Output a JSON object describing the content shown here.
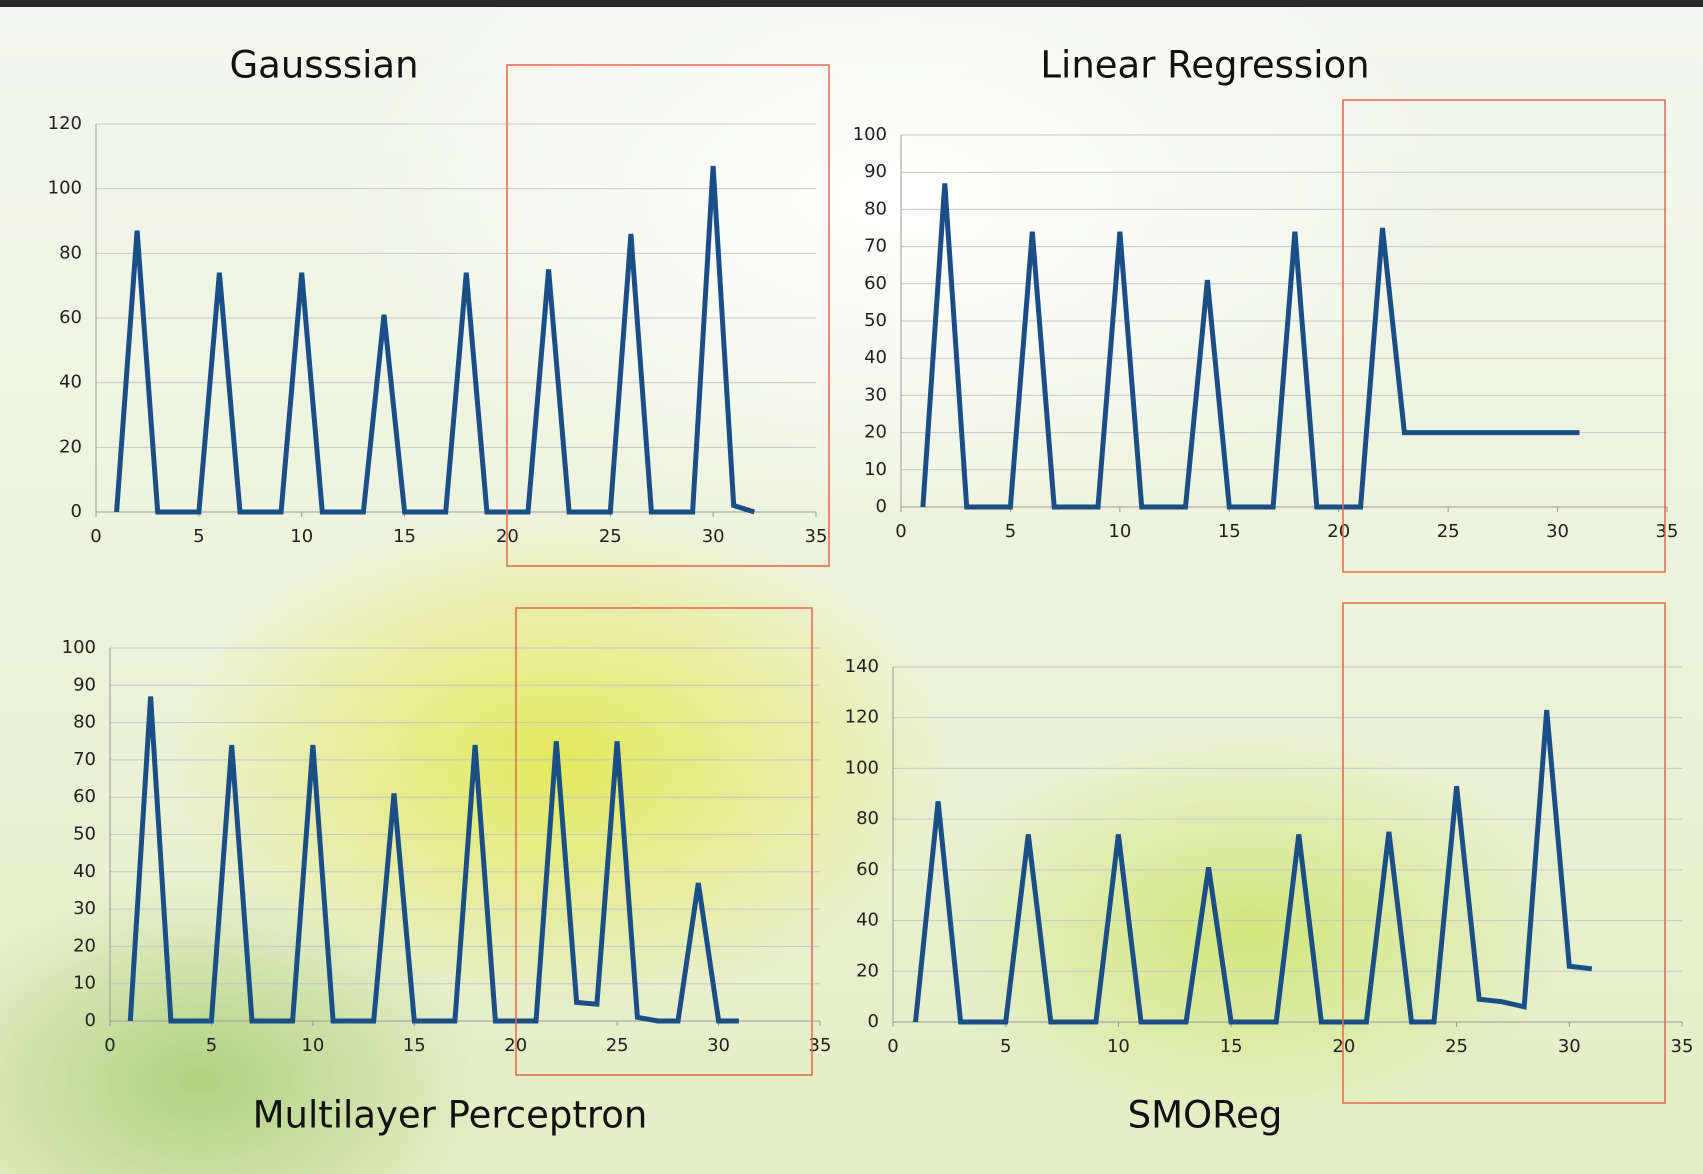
{
  "chart_data": [
    {
      "type": "line",
      "title": "Gausssian",
      "x": [
        1,
        2,
        3,
        4,
        5,
        6,
        7,
        8,
        9,
        10,
        11,
        12,
        13,
        14,
        15,
        16,
        17,
        18,
        19,
        20,
        21,
        22,
        23,
        24,
        25,
        26,
        27,
        28,
        29,
        30,
        31,
        32
      ],
      "values": [
        0,
        87,
        0,
        0,
        0,
        74,
        0,
        0,
        0,
        74,
        0,
        0,
        0,
        61,
        0,
        0,
        0,
        74,
        0,
        0,
        0,
        75,
        0,
        0,
        0,
        86,
        0,
        0,
        0,
        107,
        2,
        0
      ],
      "color": "#1a4e86",
      "xlim": [
        0,
        35
      ],
      "ylim": [
        0,
        120
      ],
      "xticks": [
        0,
        5,
        10,
        15,
        20,
        25,
        30,
        35
      ],
      "yticks": [
        0,
        20,
        40,
        60,
        80,
        100,
        120
      ],
      "grid": true
    },
    {
      "type": "line",
      "title": "Linear Regression",
      "x": [
        1,
        2,
        3,
        4,
        5,
        6,
        7,
        8,
        9,
        10,
        11,
        12,
        13,
        14,
        15,
        16,
        17,
        18,
        19,
        20,
        21,
        22,
        23,
        24,
        25,
        26,
        27,
        28,
        29,
        30,
        31
      ],
      "values": [
        0,
        87,
        0,
        0,
        0,
        74,
        0,
        0,
        0,
        74,
        0,
        0,
        0,
        61,
        0,
        0,
        0,
        74,
        0,
        0,
        0,
        75,
        20,
        20,
        20,
        20,
        20,
        20,
        20,
        20,
        20
      ],
      "color": "#1a4e86",
      "xlim": [
        0,
        35
      ],
      "ylim": [
        0,
        100
      ],
      "xticks": [
        0,
        5,
        10,
        15,
        20,
        25,
        30,
        35
      ],
      "yticks": [
        0,
        10,
        20,
        30,
        40,
        50,
        60,
        70,
        80,
        90,
        100
      ],
      "grid": true
    },
    {
      "type": "line",
      "title": "Multilayer Perceptron",
      "x": [
        1,
        2,
        3,
        4,
        5,
        6,
        7,
        8,
        9,
        10,
        11,
        12,
        13,
        14,
        15,
        16,
        17,
        18,
        19,
        20,
        21,
        22,
        23,
        24,
        25,
        26,
        27,
        28,
        29,
        30,
        31
      ],
      "values": [
        0,
        87,
        0,
        0,
        0,
        74,
        0,
        0,
        0,
        74,
        0,
        0,
        0,
        61,
        0,
        0,
        0,
        74,
        0,
        0,
        0,
        75,
        5,
        4.5,
        75,
        1,
        0,
        0,
        37,
        0,
        0
      ],
      "color": "#1a4e86",
      "xlim": [
        0,
        35
      ],
      "ylim": [
        0,
        100
      ],
      "xticks": [
        0,
        5,
        10,
        15,
        20,
        25,
        30,
        35
      ],
      "yticks": [
        0,
        10,
        20,
        30,
        40,
        50,
        60,
        70,
        80,
        90,
        100
      ],
      "grid": true
    },
    {
      "type": "line",
      "title": "SMOReg",
      "x": [
        1,
        2,
        3,
        4,
        5,
        6,
        7,
        8,
        9,
        10,
        11,
        12,
        13,
        14,
        15,
        16,
        17,
        18,
        19,
        20,
        21,
        22,
        23,
        24,
        25,
        26,
        27,
        28,
        29,
        30,
        31
      ],
      "values": [
        0,
        87,
        0,
        0,
        0,
        74,
        0,
        0,
        0,
        74,
        0,
        0,
        0,
        61,
        0,
        0,
        0,
        74,
        0,
        0,
        0,
        75,
        0,
        0,
        93,
        9,
        8,
        6,
        123,
        22,
        21
      ],
      "color": "#1a4e86",
      "xlim": [
        0,
        35
      ],
      "ylim": [
        0,
        140
      ],
      "xticks": [
        0,
        5,
        10,
        15,
        20,
        25,
        30,
        35
      ],
      "yticks": [
        0,
        20,
        40,
        60,
        80,
        100,
        120,
        140
      ],
      "grid": true
    }
  ]
}
